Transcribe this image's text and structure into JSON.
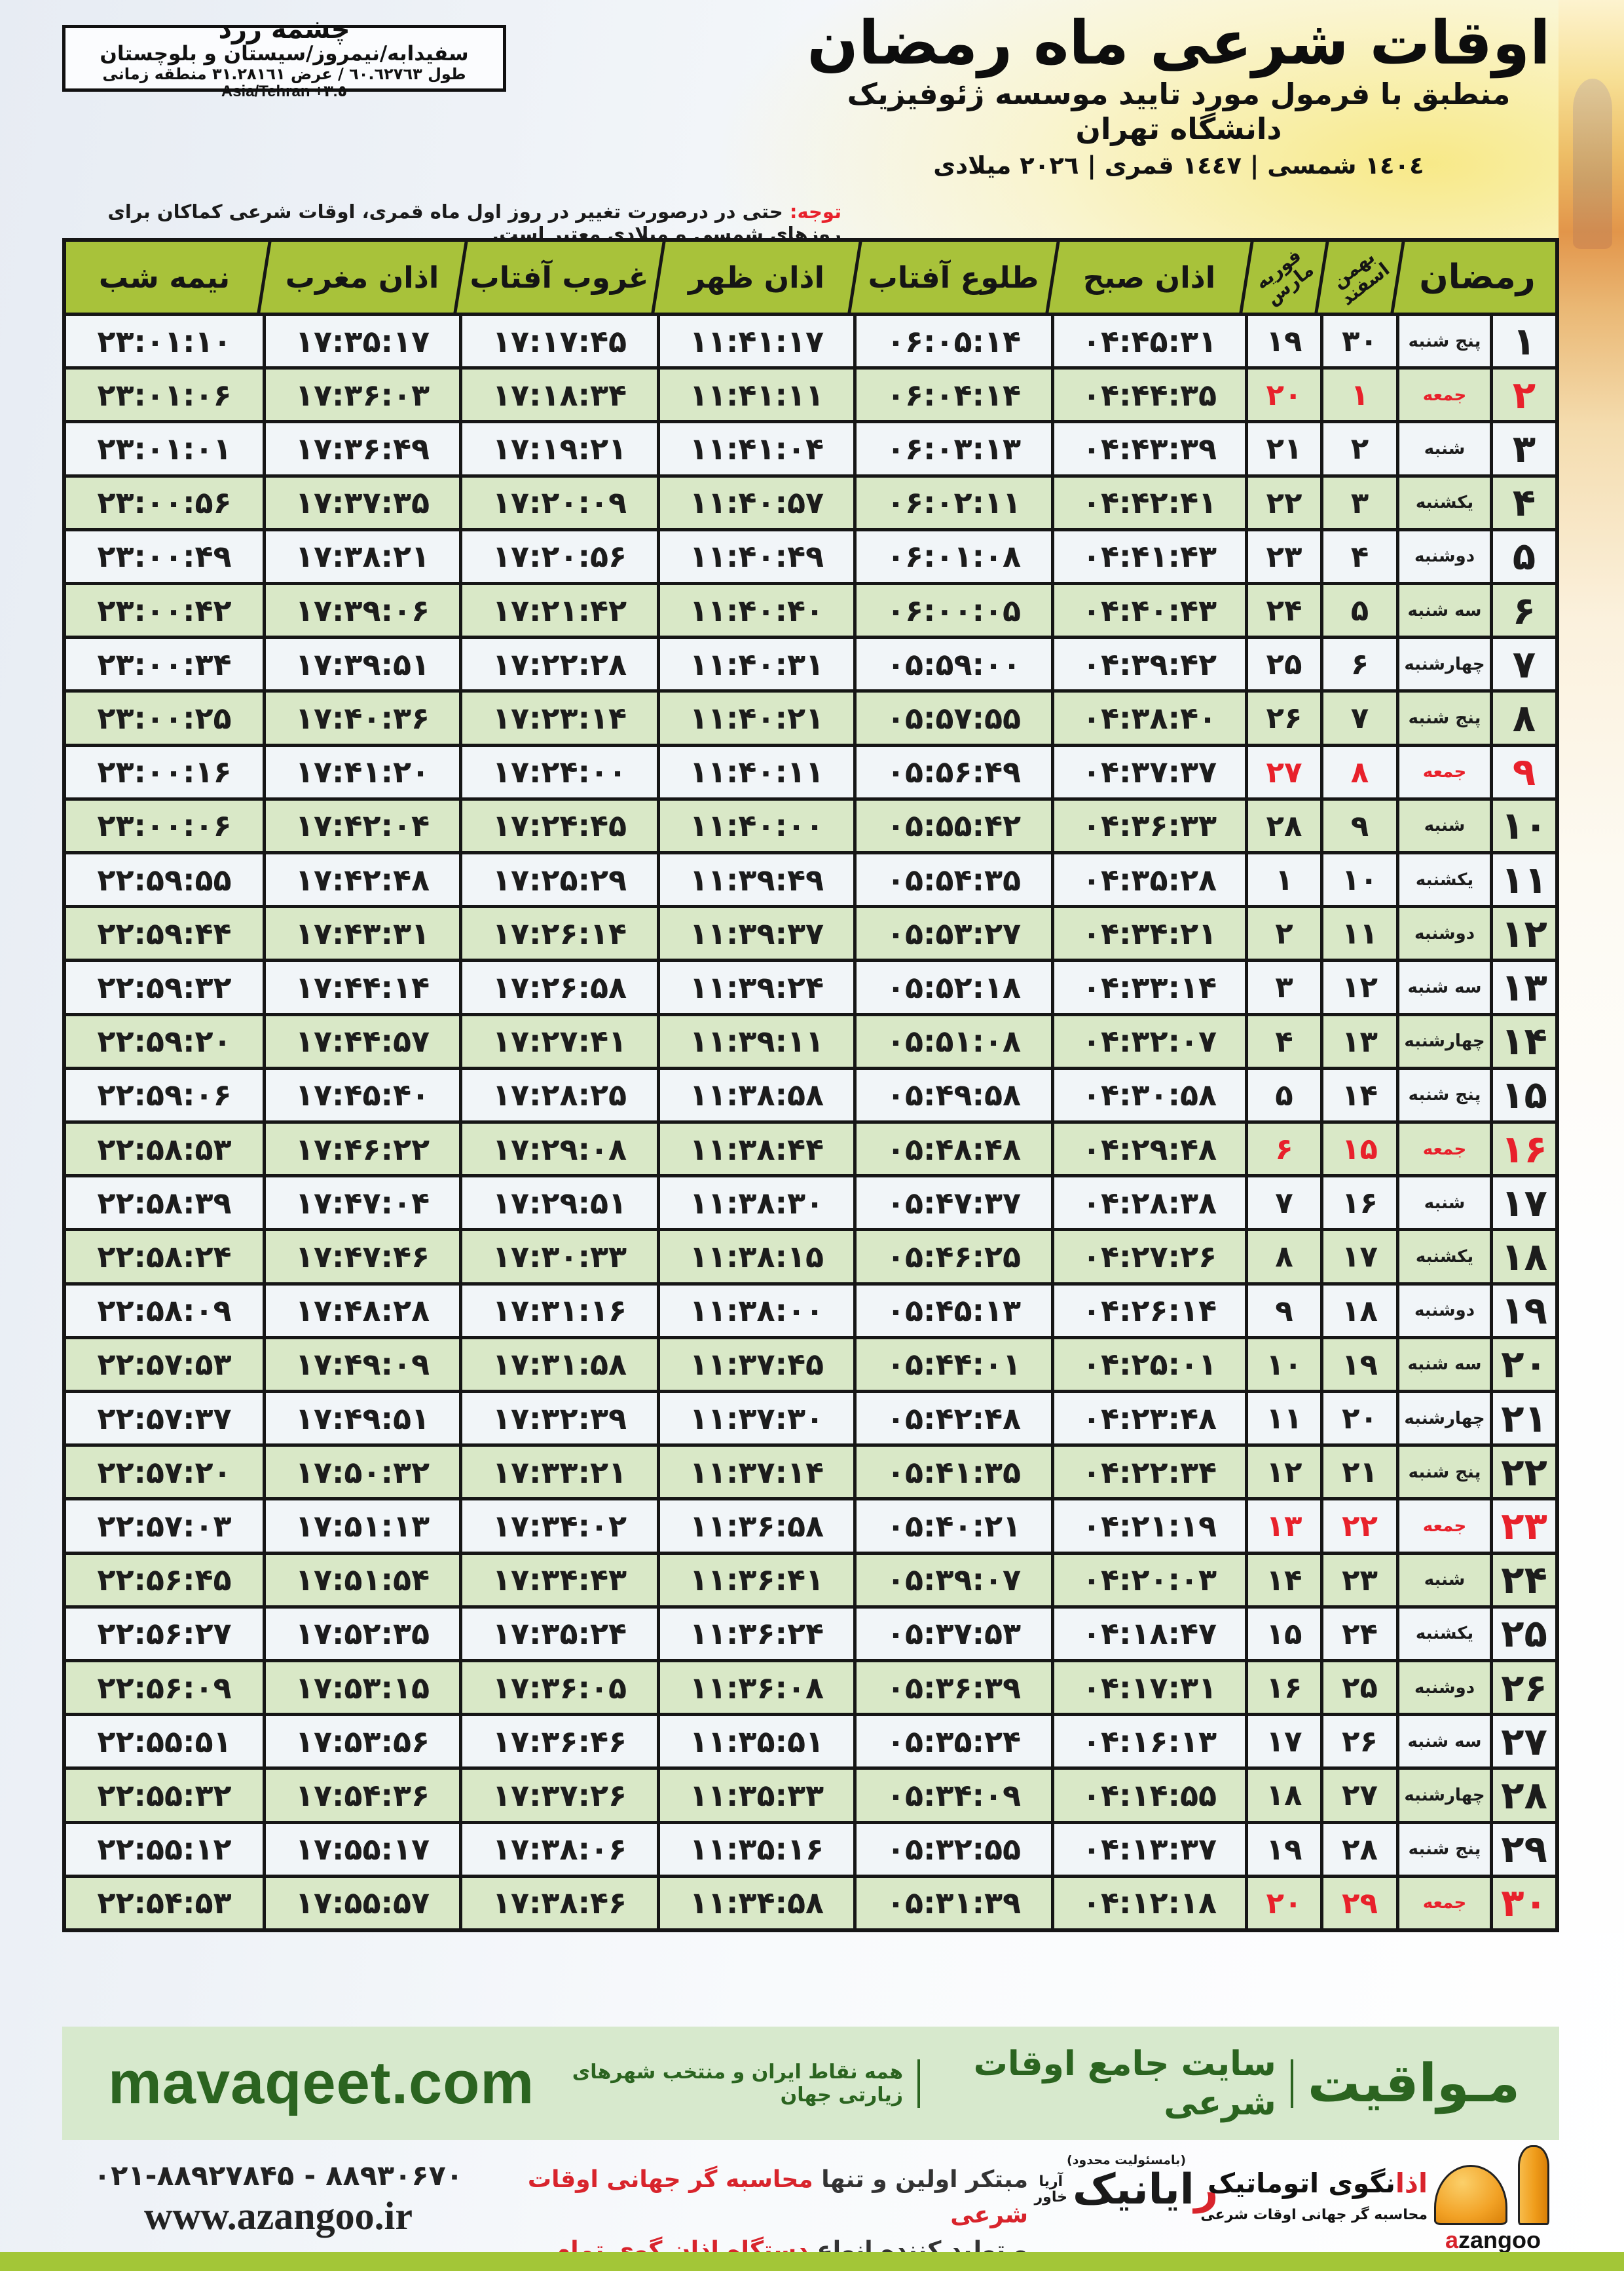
{
  "colors": {
    "header_green": "#a8c23a",
    "row_green": "#d9e8c7",
    "row_light": "#f1f5f8",
    "border_black": "#161616",
    "friday_red": "#e8212b",
    "footer_bar_bg": "#d7e9cd",
    "footer_text_green": "#2b6420",
    "bottom_bar_green": "#a3c637",
    "logo_orange": "#f2a226"
  },
  "header": {
    "location": {
      "title": "چشمه زرد",
      "region": "سفیدابه/نیمروز/سیستان و بلوچستان",
      "coords": "طول ٦٠.٦٢٧٦٣ / عرض ٣١.٢٨١٦١ منطقه زمانی",
      "timezone": "Asia/Tehran +٣.٥"
    },
    "title": "اوقات شرعی ماه رمضان",
    "subtitle": "منطبق با فرمول مورد تایید موسسه ژئوفیزیک دانشگاه تهران",
    "dates": "١٤٠٤ شمسی | ١٤٤٧ قمری | ٢٠٢٦ میلادی",
    "notice_label": "توجه:",
    "notice_text": " حتی در درصورت تغییر در روز اول ماه قمری، اوقات شرعی کماکان برای روزهای شمسی و میلادی معتبر است."
  },
  "table": {
    "headers": {
      "ramadan": "رمضان",
      "solar_top": "بهمن",
      "solar_bottom": "اسفند",
      "greg_top": "فوریه",
      "greg_bottom": "مارس",
      "sobh": "اذان صبح",
      "tolu": "طلوع آفتاب",
      "zohr": "اذان ظهر",
      "ghorub": "غروب آفتاب",
      "maghreb": "اذان مغرب",
      "nimeshab": "نیمه شب"
    },
    "rows": [
      {
        "day": "۱",
        "weekday": "پنج شنبه",
        "solar": "۳۰",
        "greg": "۱۹",
        "sobh": "۰۴:۴۵:۳۱",
        "tolu": "۰۶:۰۵:۱۴",
        "zohr": "۱۱:۴۱:۱۷",
        "ghorub": "۱۷:۱۷:۴۵",
        "maghreb": "۱۷:۳۵:۱۷",
        "nimeshab": "۲۳:۰۱:۱۰",
        "friday": false
      },
      {
        "day": "۲",
        "weekday": "جمعه",
        "solar": "۱",
        "greg": "۲۰",
        "sobh": "۰۴:۴۴:۳۵",
        "tolu": "۰۶:۰۴:۱۴",
        "zohr": "۱۱:۴۱:۱۱",
        "ghorub": "۱۷:۱۸:۳۴",
        "maghreb": "۱۷:۳۶:۰۳",
        "nimeshab": "۲۳:۰۱:۰۶",
        "friday": true
      },
      {
        "day": "۳",
        "weekday": "شنبه",
        "solar": "۲",
        "greg": "۲۱",
        "sobh": "۰۴:۴۳:۳۹",
        "tolu": "۰۶:۰۳:۱۳",
        "zohr": "۱۱:۴۱:۰۴",
        "ghorub": "۱۷:۱۹:۲۱",
        "maghreb": "۱۷:۳۶:۴۹",
        "nimeshab": "۲۳:۰۱:۰۱",
        "friday": false
      },
      {
        "day": "۴",
        "weekday": "یکشنبه",
        "solar": "۳",
        "greg": "۲۲",
        "sobh": "۰۴:۴۲:۴۱",
        "tolu": "۰۶:۰۲:۱۱",
        "zohr": "۱۱:۴۰:۵۷",
        "ghorub": "۱۷:۲۰:۰۹",
        "maghreb": "۱۷:۳۷:۳۵",
        "nimeshab": "۲۳:۰۰:۵۶",
        "friday": false
      },
      {
        "day": "۵",
        "weekday": "دوشنبه",
        "solar": "۴",
        "greg": "۲۳",
        "sobh": "۰۴:۴۱:۴۳",
        "tolu": "۰۶:۰۱:۰۸",
        "zohr": "۱۱:۴۰:۴۹",
        "ghorub": "۱۷:۲۰:۵۶",
        "maghreb": "۱۷:۳۸:۲۱",
        "nimeshab": "۲۳:۰۰:۴۹",
        "friday": false
      },
      {
        "day": "۶",
        "weekday": "سه شنبه",
        "solar": "۵",
        "greg": "۲۴",
        "sobh": "۰۴:۴۰:۴۳",
        "tolu": "۰۶:۰۰:۰۵",
        "zohr": "۱۱:۴۰:۴۰",
        "ghorub": "۱۷:۲۱:۴۲",
        "maghreb": "۱۷:۳۹:۰۶",
        "nimeshab": "۲۳:۰۰:۴۲",
        "friday": false
      },
      {
        "day": "۷",
        "weekday": "چهارشنبه",
        "solar": "۶",
        "greg": "۲۵",
        "sobh": "۰۴:۳۹:۴۲",
        "tolu": "۰۵:۵۹:۰۰",
        "zohr": "۱۱:۴۰:۳۱",
        "ghorub": "۱۷:۲۲:۲۸",
        "maghreb": "۱۷:۳۹:۵۱",
        "nimeshab": "۲۳:۰۰:۳۴",
        "friday": false
      },
      {
        "day": "۸",
        "weekday": "پنج شنبه",
        "solar": "۷",
        "greg": "۲۶",
        "sobh": "۰۴:۳۸:۴۰",
        "tolu": "۰۵:۵۷:۵۵",
        "zohr": "۱۱:۴۰:۲۱",
        "ghorub": "۱۷:۲۳:۱۴",
        "maghreb": "۱۷:۴۰:۳۶",
        "nimeshab": "۲۳:۰۰:۲۵",
        "friday": false
      },
      {
        "day": "۹",
        "weekday": "جمعه",
        "solar": "۸",
        "greg": "۲۷",
        "sobh": "۰۴:۳۷:۳۷",
        "tolu": "۰۵:۵۶:۴۹",
        "zohr": "۱۱:۴۰:۱۱",
        "ghorub": "۱۷:۲۴:۰۰",
        "maghreb": "۱۷:۴۱:۲۰",
        "nimeshab": "۲۳:۰۰:۱۶",
        "friday": true
      },
      {
        "day": "۱۰",
        "weekday": "شنبه",
        "solar": "۹",
        "greg": "۲۸",
        "sobh": "۰۴:۳۶:۳۳",
        "tolu": "۰۵:۵۵:۴۲",
        "zohr": "۱۱:۴۰:۰۰",
        "ghorub": "۱۷:۲۴:۴۵",
        "maghreb": "۱۷:۴۲:۰۴",
        "nimeshab": "۲۳:۰۰:۰۶",
        "friday": false
      },
      {
        "day": "۱۱",
        "weekday": "یکشنبه",
        "solar": "۱۰",
        "greg": "۱",
        "sobh": "۰۴:۳۵:۲۸",
        "tolu": "۰۵:۵۴:۳۵",
        "zohr": "۱۱:۳۹:۴۹",
        "ghorub": "۱۷:۲۵:۲۹",
        "maghreb": "۱۷:۴۲:۴۸",
        "nimeshab": "۲۲:۵۹:۵۵",
        "friday": false
      },
      {
        "day": "۱۲",
        "weekday": "دوشنبه",
        "solar": "۱۱",
        "greg": "۲",
        "sobh": "۰۴:۳۴:۲۱",
        "tolu": "۰۵:۵۳:۲۷",
        "zohr": "۱۱:۳۹:۳۷",
        "ghorub": "۱۷:۲۶:۱۴",
        "maghreb": "۱۷:۴۳:۳۱",
        "nimeshab": "۲۲:۵۹:۴۴",
        "friday": false
      },
      {
        "day": "۱۳",
        "weekday": "سه شنبه",
        "solar": "۱۲",
        "greg": "۳",
        "sobh": "۰۴:۳۳:۱۴",
        "tolu": "۰۵:۵۲:۱۸",
        "zohr": "۱۱:۳۹:۲۴",
        "ghorub": "۱۷:۲۶:۵۸",
        "maghreb": "۱۷:۴۴:۱۴",
        "nimeshab": "۲۲:۵۹:۳۲",
        "friday": false
      },
      {
        "day": "۱۴",
        "weekday": "چهارشنبه",
        "solar": "۱۳",
        "greg": "۴",
        "sobh": "۰۴:۳۲:۰۷",
        "tolu": "۰۵:۵۱:۰۸",
        "zohr": "۱۱:۳۹:۱۱",
        "ghorub": "۱۷:۲۷:۴۱",
        "maghreb": "۱۷:۴۴:۵۷",
        "nimeshab": "۲۲:۵۹:۲۰",
        "friday": false
      },
      {
        "day": "۱۵",
        "weekday": "پنج شنبه",
        "solar": "۱۴",
        "greg": "۵",
        "sobh": "۰۴:۳۰:۵۸",
        "tolu": "۰۵:۴۹:۵۸",
        "zohr": "۱۱:۳۸:۵۸",
        "ghorub": "۱۷:۲۸:۲۵",
        "maghreb": "۱۷:۴۵:۴۰",
        "nimeshab": "۲۲:۵۹:۰۶",
        "friday": false
      },
      {
        "day": "۱۶",
        "weekday": "جمعه",
        "solar": "۱۵",
        "greg": "۶",
        "sobh": "۰۴:۲۹:۴۸",
        "tolu": "۰۵:۴۸:۴۸",
        "zohr": "۱۱:۳۸:۴۴",
        "ghorub": "۱۷:۲۹:۰۸",
        "maghreb": "۱۷:۴۶:۲۲",
        "nimeshab": "۲۲:۵۸:۵۳",
        "friday": true
      },
      {
        "day": "۱۷",
        "weekday": "شنبه",
        "solar": "۱۶",
        "greg": "۷",
        "sobh": "۰۴:۲۸:۳۸",
        "tolu": "۰۵:۴۷:۳۷",
        "zohr": "۱۱:۳۸:۳۰",
        "ghorub": "۱۷:۲۹:۵۱",
        "maghreb": "۱۷:۴۷:۰۴",
        "nimeshab": "۲۲:۵۸:۳۹",
        "friday": false
      },
      {
        "day": "۱۸",
        "weekday": "یکشنبه",
        "solar": "۱۷",
        "greg": "۸",
        "sobh": "۰۴:۲۷:۲۶",
        "tolu": "۰۵:۴۶:۲۵",
        "zohr": "۱۱:۳۸:۱۵",
        "ghorub": "۱۷:۳۰:۳۳",
        "maghreb": "۱۷:۴۷:۴۶",
        "nimeshab": "۲۲:۵۸:۲۴",
        "friday": false
      },
      {
        "day": "۱۹",
        "weekday": "دوشنبه",
        "solar": "۱۸",
        "greg": "۹",
        "sobh": "۰۴:۲۶:۱۴",
        "tolu": "۰۵:۴۵:۱۳",
        "zohr": "۱۱:۳۸:۰۰",
        "ghorub": "۱۷:۳۱:۱۶",
        "maghreb": "۱۷:۴۸:۲۸",
        "nimeshab": "۲۲:۵۸:۰۹",
        "friday": false
      },
      {
        "day": "۲۰",
        "weekday": "سه شنبه",
        "solar": "۱۹",
        "greg": "۱۰",
        "sobh": "۰۴:۲۵:۰۱",
        "tolu": "۰۵:۴۴:۰۱",
        "zohr": "۱۱:۳۷:۴۵",
        "ghorub": "۱۷:۳۱:۵۸",
        "maghreb": "۱۷:۴۹:۰۹",
        "nimeshab": "۲۲:۵۷:۵۳",
        "friday": false
      },
      {
        "day": "۲۱",
        "weekday": "چهارشنبه",
        "solar": "۲۰",
        "greg": "۱۱",
        "sobh": "۰۴:۲۳:۴۸",
        "tolu": "۰۵:۴۲:۴۸",
        "zohr": "۱۱:۳۷:۳۰",
        "ghorub": "۱۷:۳۲:۳۹",
        "maghreb": "۱۷:۴۹:۵۱",
        "nimeshab": "۲۲:۵۷:۳۷",
        "friday": false
      },
      {
        "day": "۲۲",
        "weekday": "پنج شنبه",
        "solar": "۲۱",
        "greg": "۱۲",
        "sobh": "۰۴:۲۲:۳۴",
        "tolu": "۰۵:۴۱:۳۵",
        "zohr": "۱۱:۳۷:۱۴",
        "ghorub": "۱۷:۳۳:۲۱",
        "maghreb": "۱۷:۵۰:۳۲",
        "nimeshab": "۲۲:۵۷:۲۰",
        "friday": false
      },
      {
        "day": "۲۳",
        "weekday": "جمعه",
        "solar": "۲۲",
        "greg": "۱۳",
        "sobh": "۰۴:۲۱:۱۹",
        "tolu": "۰۵:۴۰:۲۱",
        "zohr": "۱۱:۳۶:۵۸",
        "ghorub": "۱۷:۳۴:۰۲",
        "maghreb": "۱۷:۵۱:۱۳",
        "nimeshab": "۲۲:۵۷:۰۳",
        "friday": true
      },
      {
        "day": "۲۴",
        "weekday": "شنبه",
        "solar": "۲۳",
        "greg": "۱۴",
        "sobh": "۰۴:۲۰:۰۳",
        "tolu": "۰۵:۳۹:۰۷",
        "zohr": "۱۱:۳۶:۴۱",
        "ghorub": "۱۷:۳۴:۴۳",
        "maghreb": "۱۷:۵۱:۵۴",
        "nimeshab": "۲۲:۵۶:۴۵",
        "friday": false
      },
      {
        "day": "۲۵",
        "weekday": "یکشنبه",
        "solar": "۲۴",
        "greg": "۱۵",
        "sobh": "۰۴:۱۸:۴۷",
        "tolu": "۰۵:۳۷:۵۳",
        "zohr": "۱۱:۳۶:۲۴",
        "ghorub": "۱۷:۳۵:۲۴",
        "maghreb": "۱۷:۵۲:۳۵",
        "nimeshab": "۲۲:۵۶:۲۷",
        "friday": false
      },
      {
        "day": "۲۶",
        "weekday": "دوشنبه",
        "solar": "۲۵",
        "greg": "۱۶",
        "sobh": "۰۴:۱۷:۳۱",
        "tolu": "۰۵:۳۶:۳۹",
        "zohr": "۱۱:۳۶:۰۸",
        "ghorub": "۱۷:۳۶:۰۵",
        "maghreb": "۱۷:۵۳:۱۵",
        "nimeshab": "۲۲:۵۶:۰۹",
        "friday": false
      },
      {
        "day": "۲۷",
        "weekday": "سه شنبه",
        "solar": "۲۶",
        "greg": "۱۷",
        "sobh": "۰۴:۱۶:۱۳",
        "tolu": "۰۵:۳۵:۲۴",
        "zohr": "۱۱:۳۵:۵۱",
        "ghorub": "۱۷:۳۶:۴۶",
        "maghreb": "۱۷:۵۳:۵۶",
        "nimeshab": "۲۲:۵۵:۵۱",
        "friday": false
      },
      {
        "day": "۲۸",
        "weekday": "چهارشنبه",
        "solar": "۲۷",
        "greg": "۱۸",
        "sobh": "۰۴:۱۴:۵۵",
        "tolu": "۰۵:۳۴:۰۹",
        "zohr": "۱۱:۳۵:۳۳",
        "ghorub": "۱۷:۳۷:۲۶",
        "maghreb": "۱۷:۵۴:۳۶",
        "nimeshab": "۲۲:۵۵:۳۲",
        "friday": false
      },
      {
        "day": "۲۹",
        "weekday": "پنج شنبه",
        "solar": "۲۸",
        "greg": "۱۹",
        "sobh": "۰۴:۱۳:۳۷",
        "tolu": "۰۵:۳۲:۵۵",
        "zohr": "۱۱:۳۵:۱۶",
        "ghorub": "۱۷:۳۸:۰۶",
        "maghreb": "۱۷:۵۵:۱۷",
        "nimeshab": "۲۲:۵۵:۱۲",
        "friday": false
      },
      {
        "day": "۳۰",
        "weekday": "جمعه",
        "solar": "۲۹",
        "greg": "۲۰",
        "sobh": "۰۴:۱۲:۱۸",
        "tolu": "۰۵:۳۱:۳۹",
        "zohr": "۱۱:۳۴:۵۸",
        "ghorub": "۱۷:۳۸:۴۶",
        "maghreb": "۱۷:۵۵:۵۷",
        "nimeshab": "۲۲:۵۴:۵۳",
        "friday": true
      }
    ]
  },
  "footer": {
    "site_latin": "mavaqeet.com",
    "site_fa": "مـواقیت",
    "site_desc": "سایت جامع اوقات شرعی",
    "site_desc2": "همه نقاط ایران و منتخب شهرهای زیارتی جهان",
    "phone": "۰۲۱-۸۸۹۲۷۸۴۵ - ۸۸۹۳۰۶۷۰",
    "website": "www.azangoo.ir",
    "claim1_black": "مبتکر اولین و تنها ",
    "claim1_red": "محاسبه گر جهانی اوقات شرعی",
    "claim2_black": "و تولید کننده انواع ",
    "claim2_red": "دستگاه اذان گوی تمام خودکار ماهواره ای",
    "rayanik_note": "(بامسئولیت محدود)",
    "rayanik_initial": "ر",
    "rayanik_rest": "ایانیک",
    "rayanik_sub1": "آریا",
    "rayanik_sub2": "خاور",
    "azangoo_fa_red": "اذا",
    "azangoo_fa_rest": "نگوی اتوماتیک",
    "azangoo_tagline": "محاسبه گر جهانی اوقات شرعی",
    "azangoo_latin_a": "a",
    "azangoo_latin_rest": "zangoo"
  }
}
